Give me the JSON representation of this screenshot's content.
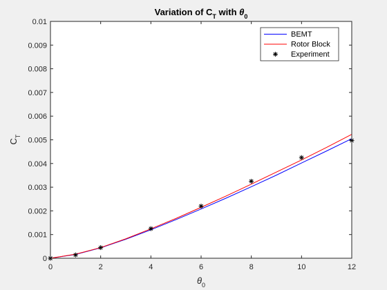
{
  "chart_data": {
    "type": "line",
    "title": {
      "main": "Variation  of  C",
      "sub": "T",
      "mid": "  with  ",
      "greek": "θ",
      "greek_sub": "0"
    },
    "xlabel": {
      "greek": "θ",
      "sub": "0"
    },
    "ylabel": {
      "main": "C",
      "sub": "T"
    },
    "xlim": [
      0,
      12
    ],
    "ylim": [
      0,
      0.01
    ],
    "xticks": [
      "0",
      "2",
      "4",
      "6",
      "8",
      "10",
      "12"
    ],
    "xtick_values": [
      0,
      2,
      4,
      6,
      8,
      10,
      12
    ],
    "yticks": [
      "0",
      "0.001",
      "0.002",
      "0.003",
      "0.004",
      "0.005",
      "0.006",
      "0.007",
      "0.008",
      "0.009",
      "0.01"
    ],
    "ytick_values": [
      0,
      0.001,
      0.002,
      0.003,
      0.004,
      0.005,
      0.006,
      0.007,
      0.008,
      0.009,
      0.01
    ],
    "grid": false,
    "legend_position": "top-right",
    "series": [
      {
        "name": "BEMT",
        "kind": "line",
        "color": "#0000ff",
        "x": [
          0,
          1,
          2,
          3,
          4,
          5,
          6,
          7,
          8,
          9,
          10,
          11,
          12
        ],
        "y": [
          0,
          0.00016,
          0.00044,
          0.0008,
          0.0012,
          0.00163,
          0.00208,
          0.00254,
          0.00302,
          0.00351,
          0.00402,
          0.00453,
          0.00505
        ]
      },
      {
        "name": "Rotor Block",
        "kind": "line",
        "color": "#ff0000",
        "x": [
          0,
          1,
          2,
          3,
          4,
          5,
          6,
          7,
          8,
          9,
          10,
          11,
          12
        ],
        "y": [
          0,
          0.00017,
          0.00045,
          0.00082,
          0.00124,
          0.00168,
          0.00215,
          0.00263,
          0.00313,
          0.00364,
          0.00415,
          0.00468,
          0.00523
        ]
      },
      {
        "name": "Experiment",
        "kind": "scatter",
        "marker": "*",
        "color": "#000000",
        "x": [
          0,
          1,
          2,
          4,
          6,
          8,
          10,
          12
        ],
        "y": [
          0,
          0.00014,
          0.00045,
          0.00125,
          0.0022,
          0.00325,
          0.00425,
          0.00497
        ]
      }
    ]
  }
}
